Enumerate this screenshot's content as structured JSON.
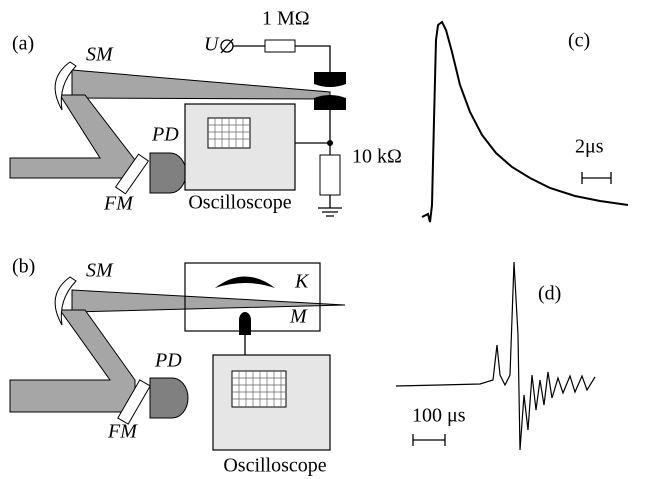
{
  "panels": {
    "a": {
      "label": "(a)",
      "mirror": "SM",
      "voltage": "U",
      "resistor_high": "1 MΩ",
      "detector": "PD",
      "filter": "FM",
      "scope": "Oscilloscope",
      "resistor_low": "10 kΩ"
    },
    "b": {
      "label": "(b)",
      "mirror": "SM",
      "detector": "PD",
      "filter": "FM",
      "electrode_k": "K",
      "electrode_m": "M",
      "scope": "Oscilloscope"
    },
    "c": {
      "label": "(c)",
      "scale": "2μs"
    },
    "d": {
      "label": "(d)",
      "scale": "100 μs"
    }
  }
}
